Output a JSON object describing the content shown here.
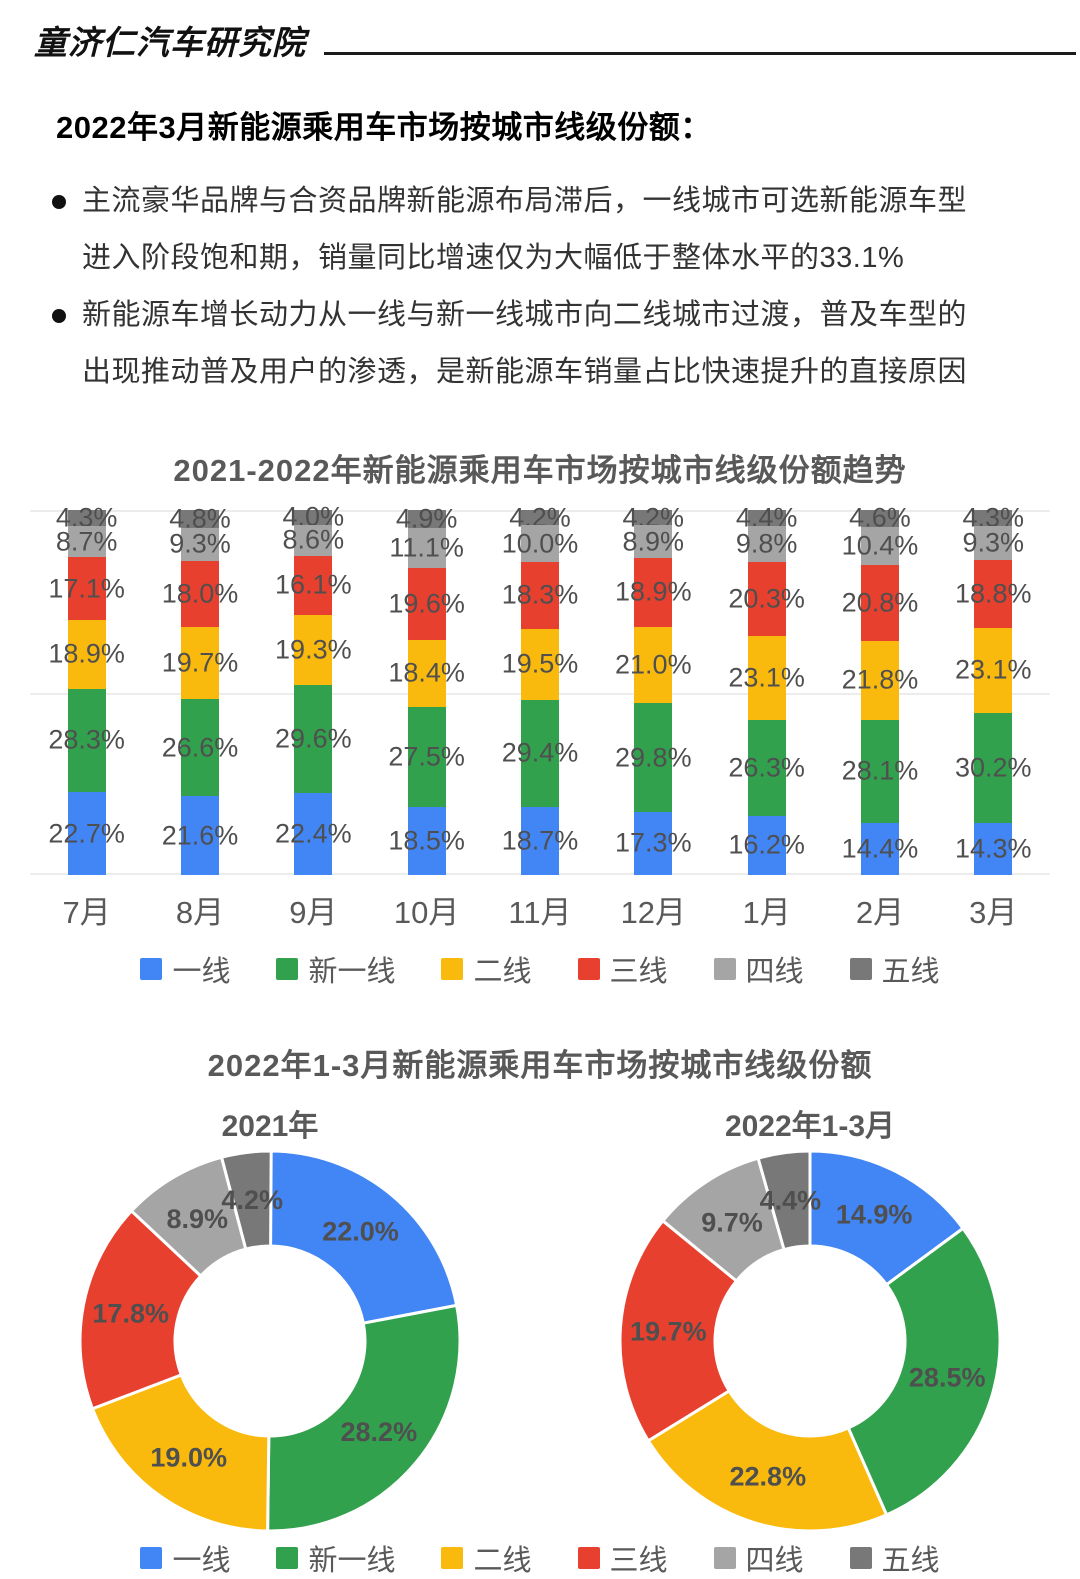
{
  "header": {
    "logo": "童济仁汽车研究院"
  },
  "title": "2022年3月新能源乘用车市场按城市线级份额：",
  "bullets": [
    {
      "lines": [
        "主流豪华品牌与合资品牌新能源布局滞后，一线城市可选新能源车型",
        "进入阶段饱和期，销量同比增速仅为大幅低于整体水平的33.1%"
      ]
    },
    {
      "lines": [
        "新能源车增长动力从一线与新一线城市向二线城市过渡，普及车型的",
        "出现推动普及用户的渗透，是新能源车销量占比快速提升的直接原因"
      ]
    }
  ],
  "colors": {
    "tier1_blue": "#4285F4",
    "new_tier1_green": "#32A14E",
    "tier2_yellow": "#F9B90D",
    "tier3_red": "#E7402F",
    "tier4_gray": "#A5A5A5",
    "tier5_darkgray": "#787878",
    "chart_text": "#595959",
    "gridline": "#ececec"
  },
  "legend": {
    "items": [
      {
        "label": "一线",
        "color": "#4285F4"
      },
      {
        "label": "新一线",
        "color": "#32A14E"
      },
      {
        "label": "二线",
        "color": "#F9B90D"
      },
      {
        "label": "三线",
        "color": "#E7402F"
      },
      {
        "label": "四线",
        "color": "#A5A5A5"
      },
      {
        "label": "五线",
        "color": "#787878"
      }
    ]
  },
  "chart_data": [
    {
      "type": "bar",
      "subtype": "stacked-100-percent-column",
      "title": "2021-2022年新能源乘用车市场按城市线级份额趋势",
      "categories": [
        "7月",
        "8月",
        "9月",
        "10月",
        "11月",
        "12月",
        "1月",
        "2月",
        "3月"
      ],
      "series": [
        {
          "name": "一线",
          "color": "#4285F4",
          "values": [
            22.7,
            21.6,
            22.4,
            18.5,
            18.7,
            17.3,
            16.2,
            14.4,
            14.3
          ]
        },
        {
          "name": "新一线",
          "color": "#32A14E",
          "values": [
            28.3,
            26.6,
            29.6,
            27.5,
            29.4,
            29.8,
            26.3,
            28.1,
            30.2
          ]
        },
        {
          "name": "二线",
          "color": "#F9B90D",
          "values": [
            18.9,
            19.7,
            19.3,
            18.4,
            19.5,
            21.0,
            23.1,
            21.8,
            23.1
          ]
        },
        {
          "name": "三线",
          "color": "#E7402F",
          "values": [
            17.1,
            18.0,
            16.1,
            19.6,
            18.3,
            18.9,
            20.3,
            20.8,
            18.8
          ]
        },
        {
          "name": "四线",
          "color": "#A5A5A5",
          "values": [
            8.7,
            9.3,
            8.6,
            11.1,
            10.0,
            8.9,
            9.8,
            10.4,
            9.3
          ]
        },
        {
          "name": "五线",
          "color": "#787878",
          "values": [
            4.3,
            4.8,
            4.0,
            4.9,
            4.2,
            4.2,
            4.4,
            4.6,
            4.3
          ]
        }
      ],
      "ylim": [
        0,
        100
      ],
      "grid": "horizontal lines at 0, 50, 100",
      "label_format": "one decimal + %",
      "legend_position": "bottom"
    },
    {
      "type": "pie",
      "subtype": "donut",
      "title": "2022年1-3月新能源乘用车市场按城市线级份额",
      "categories": [
        "一线",
        "新一线",
        "二线",
        "三线",
        "四线",
        "五线"
      ],
      "charts": [
        {
          "label": "2021年",
          "values": [
            22.0,
            28.2,
            19.0,
            17.8,
            8.9,
            4.2
          ]
        },
        {
          "label": "2022年1-3月",
          "values": [
            14.9,
            28.5,
            22.8,
            19.7,
            9.7,
            4.4
          ]
        }
      ],
      "start_angle": "top, clockwise",
      "label_format": "one decimal + %",
      "legend_position": "bottom"
    }
  ]
}
